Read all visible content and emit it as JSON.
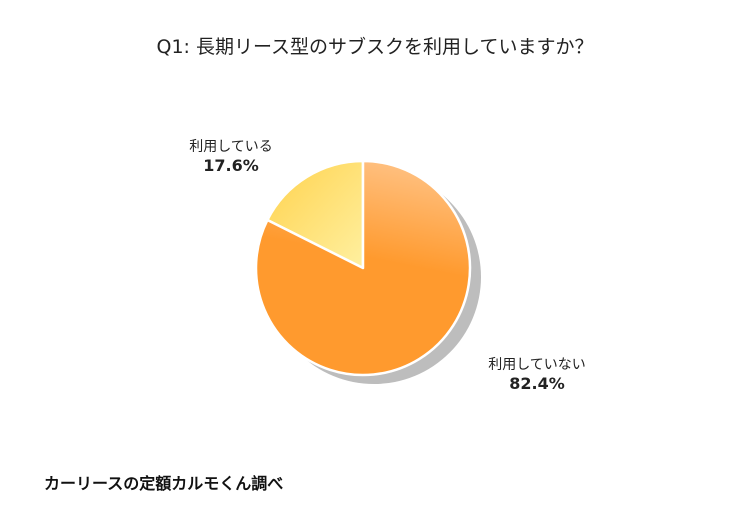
{
  "chart_data": {
    "type": "pie",
    "title": "Q1: 長期リース型のサブスクを利用していますか？",
    "slices": [
      {
        "name": "利用している",
        "value": 17.6,
        "value_label": "17.6%",
        "color_light": "#fff0a0",
        "color_dark": "#ffd24d"
      },
      {
        "name": "利用していない",
        "value": 82.4,
        "value_label": "82.4%",
        "color_light": "#ffc080",
        "color_dark": "#ff9a2e"
      }
    ],
    "start_angle_deg": 0,
    "direction": "counterclockwise",
    "shadow_color": "#bdbdbd",
    "separator_color": "#ffffff"
  },
  "source": "カーリースの定額カルモくん調べ"
}
